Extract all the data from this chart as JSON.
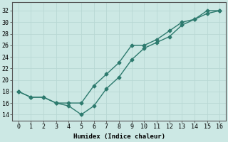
{
  "x": [
    0,
    1,
    2,
    3,
    4,
    5,
    6,
    7,
    8,
    9,
    10,
    11,
    12,
    13,
    14,
    15,
    16
  ],
  "line1": [
    18,
    17,
    17,
    16,
    16,
    16,
    19,
    21,
    23,
    26,
    26,
    27,
    28.5,
    30,
    30.5,
    32,
    32
  ],
  "line2": [
    18,
    17,
    17,
    16,
    15.5,
    14,
    15.5,
    18.5,
    20.5,
    23.5,
    25.5,
    26.5,
    27.5,
    29.5,
    30.5,
    31.5,
    32
  ],
  "line_color": "#2d7a6e",
  "bg_color": "#cce8e4",
  "grid_color": "#b8d8d4",
  "xlabel": "Humidex (Indice chaleur)",
  "ylabel_ticks": [
    14,
    16,
    18,
    20,
    22,
    24,
    26,
    28,
    30,
    32
  ],
  "xlim": [
    -0.5,
    16.5
  ],
  "ylim": [
    13,
    33.5
  ],
  "xticks": [
    0,
    1,
    2,
    3,
    4,
    5,
    6,
    7,
    8,
    9,
    10,
    11,
    12,
    13,
    14,
    15,
    16
  ],
  "marker": "D",
  "markersize": 2.5,
  "linewidth": 1.0
}
